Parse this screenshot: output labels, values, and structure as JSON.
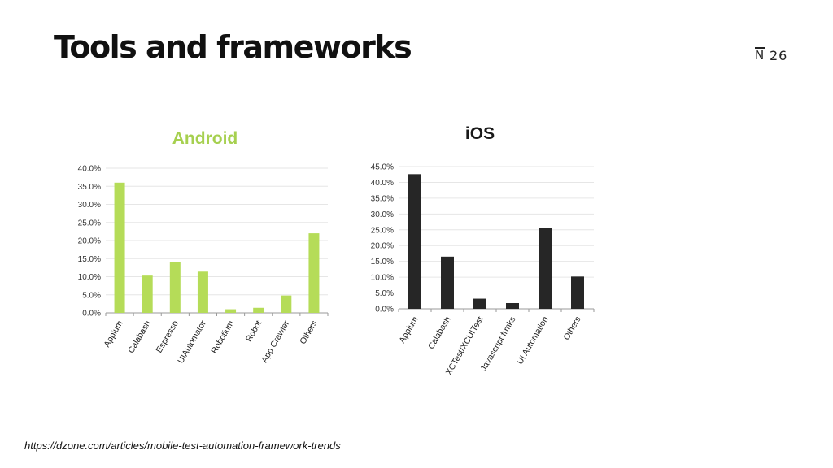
{
  "slide": {
    "title": "Tools and frameworks",
    "page_number": "26",
    "source": "https://dzone.com/articles/mobile-test-automation-framework-trends"
  },
  "brand": {
    "logo_letter": "N",
    "logo_icon": "n26-logo-icon"
  },
  "chart_data": [
    {
      "type": "bar",
      "title": "Android",
      "title_color": "#a6d04f",
      "bar_color": "#b5dc58",
      "categories": [
        "Appium",
        "Calabash",
        "Espresso",
        "UIAutomator",
        "Robotium",
        "Robot",
        "App Crawler",
        "Others"
      ],
      "values": [
        36.0,
        10.3,
        14.0,
        11.4,
        1.0,
        1.4,
        4.8,
        22.0
      ],
      "ylim": [
        0,
        40
      ],
      "yticks": [
        "0.0%",
        "5.0%",
        "10.0%",
        "15.0%",
        "20.0%",
        "25.0%",
        "30.0%",
        "35.0%",
        "40.0%"
      ],
      "xlabel": "",
      "ylabel": "",
      "grid": true
    },
    {
      "type": "bar",
      "title": "iOS",
      "title_color": "#1a1a1a",
      "bar_color": "#262626",
      "categories": [
        "Appium",
        "Calabash",
        "XCTest/XCUITest",
        "Javascript frmks",
        "UI Automation",
        "Others"
      ],
      "values": [
        42.6,
        16.5,
        3.2,
        1.8,
        25.7,
        10.2
      ],
      "ylim": [
        0,
        45
      ],
      "yticks": [
        "0.0%",
        "5.0%",
        "10.0%",
        "15.0%",
        "20.0%",
        "25.0%",
        "30.0%",
        "35.0%",
        "40.0%",
        "45.0%"
      ],
      "xlabel": "",
      "ylabel": "",
      "grid": true
    }
  ]
}
